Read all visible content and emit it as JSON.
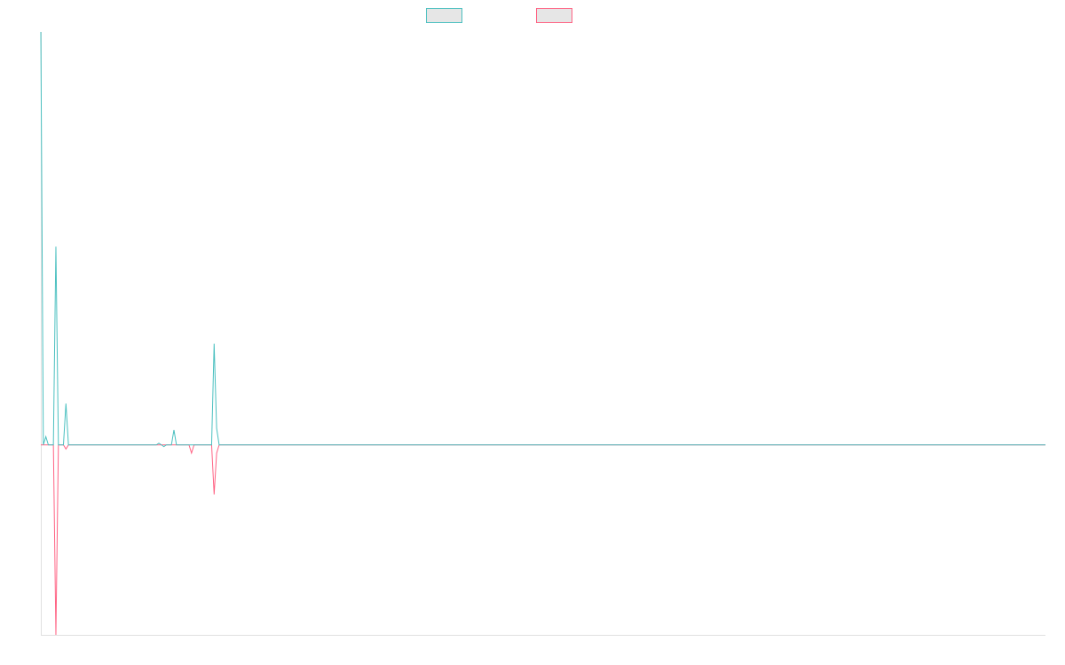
{
  "chart_data": {
    "type": "line",
    "x": [
      0,
      1,
      2,
      3,
      4,
      5,
      6,
      7,
      8,
      9,
      10,
      11,
      12,
      13,
      14,
      15,
      16,
      17,
      18,
      19,
      20,
      21,
      22,
      23,
      24,
      25,
      26,
      27,
      28,
      29,
      30,
      31,
      32,
      33,
      34,
      35,
      36,
      37,
      38,
      39,
      40,
      41,
      42,
      43,
      44,
      45,
      46,
      47,
      48,
      49,
      50,
      51,
      52,
      53,
      54,
      55,
      56,
      57,
      58,
      59,
      60,
      61,
      62,
      63,
      64,
      65,
      66,
      67,
      68,
      69,
      70,
      71,
      72,
      73,
      74,
      75,
      76,
      77,
      78,
      79,
      80,
      81,
      82,
      83,
      84,
      85,
      86,
      87,
      88,
      89,
      90,
      91,
      92,
      93,
      94,
      95,
      96,
      97,
      98,
      99,
      100,
      101,
      102,
      103,
      104,
      105,
      106,
      107,
      108,
      109,
      110,
      111,
      112,
      113,
      114,
      115,
      116,
      117,
      118,
      119,
      120,
      121,
      122,
      123,
      124,
      125,
      126,
      127,
      128,
      129,
      130,
      131,
      132,
      133,
      134,
      135,
      136,
      137,
      138,
      139,
      140,
      141,
      142,
      143,
      144,
      145,
      146,
      147,
      148,
      149,
      150,
      151,
      152,
      153,
      154,
      155,
      156,
      157,
      158,
      159,
      160,
      161,
      162,
      163,
      164,
      165,
      166,
      167,
      168,
      169,
      170,
      171,
      172,
      173,
      174,
      175,
      176,
      177,
      178,
      179,
      180,
      181,
      182,
      183,
      184,
      185,
      186,
      187,
      188,
      189,
      190,
      191,
      192,
      193,
      194,
      195,
      196,
      197,
      198,
      199,
      200,
      201,
      202,
      203,
      204,
      205,
      206,
      207,
      208,
      209,
      210,
      211,
      212,
      213,
      214,
      215,
      216,
      217,
      218,
      219,
      220,
      221,
      222,
      223,
      224,
      225,
      226,
      227,
      228,
      229,
      230,
      231,
      232,
      233,
      234,
      235,
      236,
      237,
      238,
      239,
      240,
      241,
      242,
      243,
      244,
      245,
      246,
      247,
      248,
      249,
      250,
      251,
      252,
      253,
      254,
      255,
      256,
      257,
      258,
      259,
      260,
      261,
      262,
      263,
      264,
      265,
      266,
      267,
      268,
      269,
      270,
      271,
      272,
      273,
      274,
      275,
      276,
      277,
      278,
      279,
      280,
      281,
      282,
      283,
      284,
      285,
      286,
      287,
      288,
      289,
      290,
      291,
      292,
      293,
      294,
      295,
      296,
      297,
      298,
      299,
      300,
      301,
      302,
      303,
      304,
      305,
      306,
      307,
      308,
      309,
      310,
      311,
      312,
      313,
      314,
      315,
      316,
      317,
      318,
      319,
      320,
      321,
      322,
      323,
      324,
      325,
      326,
      327,
      328,
      329,
      330,
      331,
      332,
      333,
      334,
      335,
      336,
      337,
      338,
      339,
      340,
      341,
      342,
      343,
      344,
      345,
      346,
      347,
      348,
      349,
      350,
      351,
      352,
      353,
      354,
      355,
      356,
      357,
      358,
      359,
      360,
      361,
      362,
      363,
      364,
      365,
      366,
      367,
      368,
      369,
      370,
      371,
      372,
      373,
      374,
      375,
      376,
      377,
      378,
      379,
      380,
      381,
      382,
      383,
      384,
      385,
      386,
      387,
      388,
      389,
      390,
      391,
      392,
      393,
      394,
      395,
      396,
      397,
      398,
      399,
      400
    ],
    "series": [
      {
        "name": "",
        "color": "#4bc0c0",
        "sparse": {
          "0": 1.0,
          "2": 0.02,
          "6": 0.48,
          "10": 0.1,
          "47": 0.004,
          "49": -0.004,
          "53": 0.036,
          "69": 0.245,
          "70": 0.04
        }
      },
      {
        "name": "",
        "color": "#ff6384",
        "sparse": {
          "6": -0.46,
          "10": -0.01,
          "60": -0.02,
          "69": -0.12,
          "70": -0.02
        }
      }
    ],
    "xlim": [
      0,
      400
    ],
    "ylim": [
      -0.46,
      1.0
    ],
    "grid": false,
    "legend": "top-center"
  }
}
